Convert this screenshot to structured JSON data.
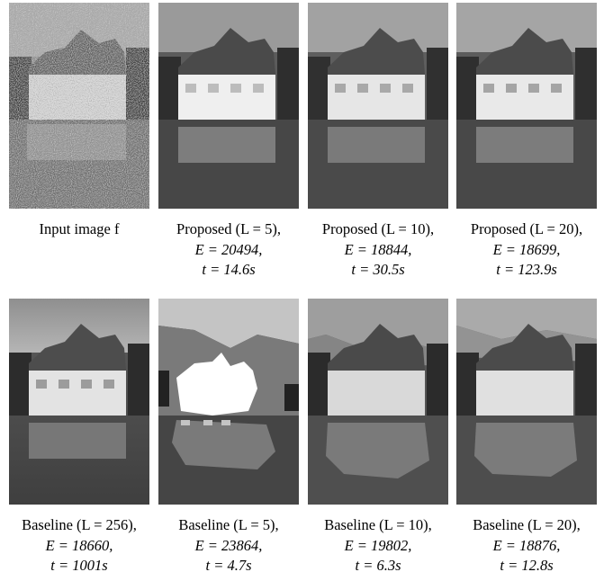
{
  "figure": {
    "rows": [
      {
        "panels": [
          {
            "id": "input",
            "line1": "Input image f",
            "line2": "",
            "line3": "",
            "style": "noisy"
          },
          {
            "id": "prop5",
            "line1": "Proposed (L = 5),",
            "line2": "E = 20494,",
            "line3": "t = 14.6s",
            "style": "quant"
          },
          {
            "id": "prop10",
            "line1": "Proposed (L = 10),",
            "line2": "E = 18844,",
            "line3": "t = 30.5s",
            "style": "quant"
          },
          {
            "id": "prop20",
            "line1": "Proposed (L = 20),",
            "line2": "E = 18699,",
            "line3": "t = 123.9s",
            "style": "quant"
          }
        ]
      },
      {
        "panels": [
          {
            "id": "base256",
            "line1": "Baseline (L = 256),",
            "line2": "E = 18660,",
            "line3": "t = 1001s",
            "style": "smooth"
          },
          {
            "id": "base5",
            "line1": "Baseline (L = 5),",
            "line2": "E = 23864,",
            "line3": "t = 4.7s",
            "style": "coarse"
          },
          {
            "id": "base10",
            "line1": "Baseline (L = 10),",
            "line2": "E = 19802,",
            "line3": "t = 6.3s",
            "style": "banded"
          },
          {
            "id": "base20",
            "line1": "Baseline (L = 20),",
            "line2": "E = 18876,",
            "line3": "t = 12.8s",
            "style": "banded"
          }
        ]
      }
    ]
  }
}
